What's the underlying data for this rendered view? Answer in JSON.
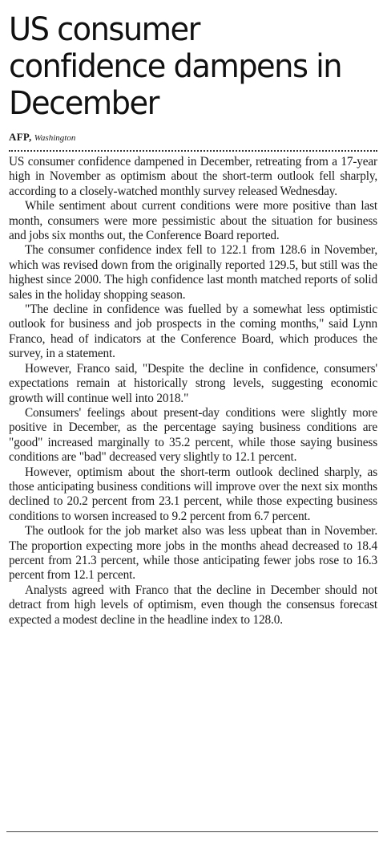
{
  "article": {
    "headline": "US consumer confidence dampens in December",
    "byline": {
      "agency": "AFP,",
      "location": "Washington"
    },
    "paragraphs": [
      "US consumer confidence dampened in December, retreating from a 17-year high in November as optimism about the short-term outlook fell sharply, according to a closely-watched monthly survey released Wednesday.",
      "While sentiment about current conditions were more positive than last month, consumers were more pessimistic about the situation for business and jobs six months out, the Conference Board reported.",
      "The consumer confidence index fell to 122.1 from 128.6 in November, which was revised down from the originally reported 129.5, but still was the highest since 2000. The high confidence last month matched reports of solid sales in the holiday shopping season.",
      "\"The decline in confidence was fuelled by a somewhat less optimistic outlook for business and job prospects in the coming months,\" said Lynn Franco, head of indicators at the Conference Board, which produces the survey, in a statement.",
      "However, Franco said, \"Despite the decline in confidence, consumers' expectations remain at historically strong levels, suggesting economic growth will continue well into 2018.\"",
      "Consumers' feelings about present-day conditions were slightly more positive in December, as the percentage saying business conditions are \"good\" increased marginally to 35.2 percent, while those saying business conditions are \"bad\" decreased very slightly to 12.1 percent.",
      "However, optimism about the short-term outlook declined sharply, as those anticipating business conditions will improve over the next six months declined to 20.2 percent from 23.1 percent, while those expecting business conditions to worsen increased to 9.2 percent from 6.7 percent.",
      "The outlook for the job market also was less upbeat than in November. The proportion expecting more jobs in the months ahead decreased to 18.4 percent from 21.3 percent, while those anticipating fewer jobs rose to 16.3 percent from 12.1 percent.",
      "Analysts agreed with Franco that the decline in December should not detract from high levels of optimism, even though the consensus forecast expected a modest decline in the headline index to 128.0."
    ]
  }
}
